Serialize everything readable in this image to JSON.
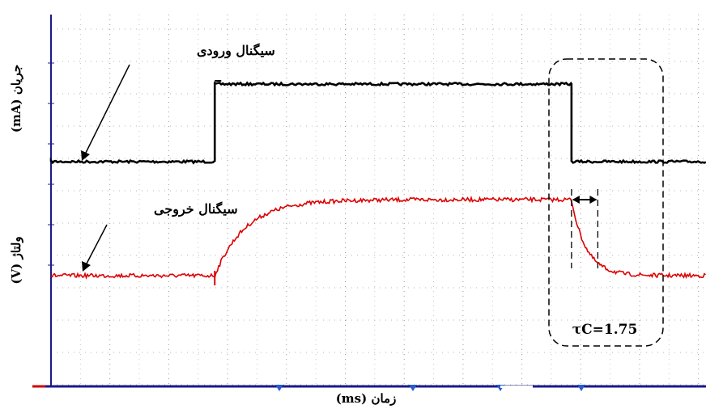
{
  "chart_data": {
    "type": "line",
    "xlabel": "زمان (ms)",
    "ylabel_top": "جریان (mA)",
    "ylabel_bottom": "ولتاژ (V)",
    "grid": true,
    "series": [
      {
        "name": "سیگنال ورودی",
        "color": "#000000",
        "style": "step",
        "x_start": 0,
        "x_rise": 2.8,
        "x_fall": 8.9,
        "x_end": 11.2,
        "low": 0,
        "high": 1
      },
      {
        "name": "سیگنال خروجی",
        "color": "#dd0000",
        "style": "rc-response",
        "x_start": 0,
        "x_rise": 2.8,
        "x_fall": 8.9,
        "x_end": 11.2,
        "low": 0,
        "high": 1
      }
    ],
    "annotations": [
      {
        "text": "τC=1.75",
        "type": "time-constant-marker",
        "x_from": 8.9,
        "x_to": 9.35
      }
    ]
  }
}
